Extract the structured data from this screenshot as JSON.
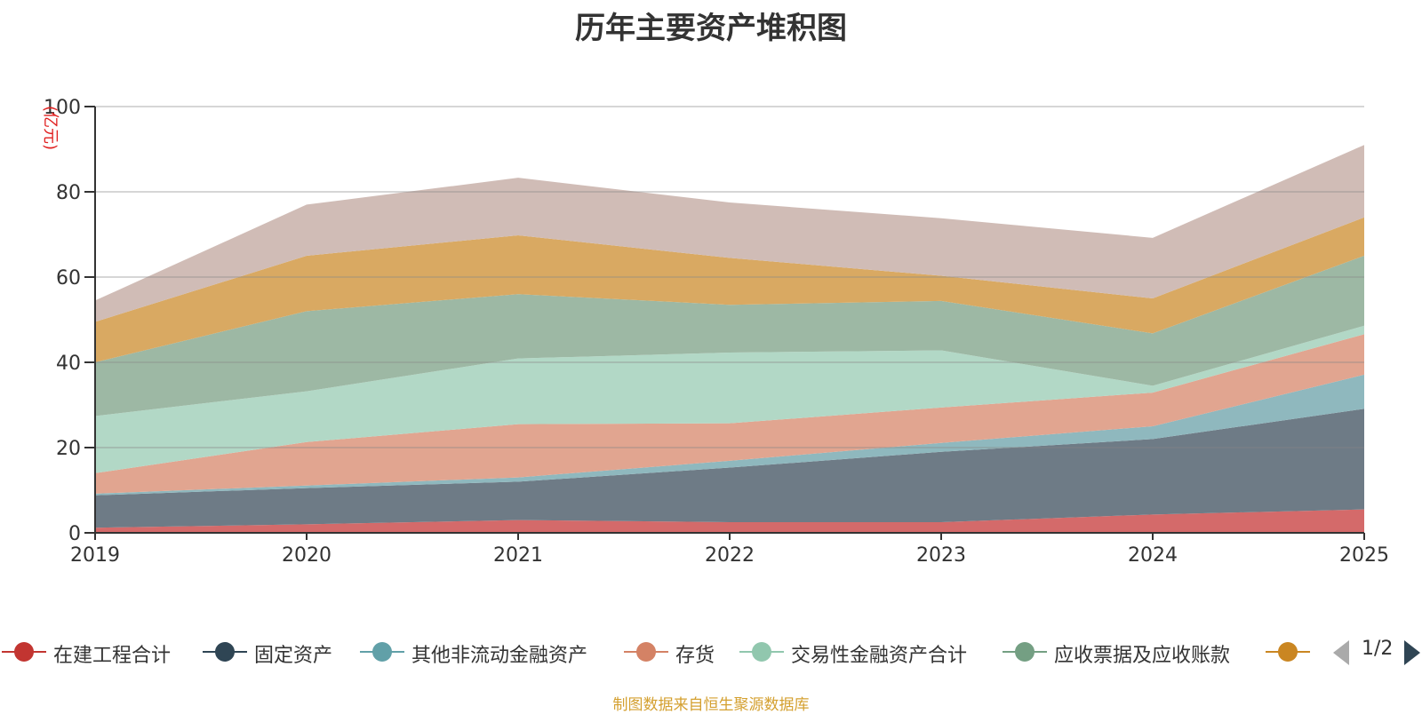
{
  "chart_data": {
    "type": "area",
    "stacked": true,
    "title": "历年主要资产堆积图",
    "ylabel": "(亿元)",
    "xlabel": "",
    "categories": [
      "2019",
      "2020",
      "2021",
      "2022",
      "2023",
      "2024",
      "2025"
    ],
    "ylim": [
      0,
      100
    ],
    "yticks": [
      0,
      20,
      40,
      60,
      80,
      100
    ],
    "series": [
      {
        "name": "在建工程合计",
        "color": "#c23531",
        "fill": "#d46a6a",
        "values": [
          1.2,
          2.0,
          3.0,
          2.5,
          2.5,
          4.3,
          5.5
        ]
      },
      {
        "name": "固定资产",
        "color": "#2f4554",
        "fill": "#6e7b86",
        "values": [
          7.6,
          8.5,
          9.0,
          12.8,
          16.5,
          17.7,
          23.6
        ]
      },
      {
        "name": "其他非流动金融资产",
        "color": "#61a0a8",
        "fill": "#8fb8be",
        "values": [
          0.4,
          0.6,
          1.0,
          1.6,
          2.1,
          3.0,
          8.0
        ]
      },
      {
        "name": "存货",
        "color": "#d48265",
        "fill": "#e1a590",
        "values": [
          4.8,
          10.2,
          12.5,
          8.8,
          8.3,
          7.9,
          9.5
        ]
      },
      {
        "name": "交易性金融资产合计",
        "color": "#91c7ae",
        "fill": "#b2d8c6",
        "values": [
          13.4,
          11.9,
          15.4,
          16.6,
          13.4,
          1.6,
          2.0
        ]
      },
      {
        "name": "应收票据及应收账款",
        "color": "#749f83",
        "fill": "#9db8a4",
        "values": [
          12.6,
          18.8,
          15.1,
          11.2,
          11.6,
          12.3,
          16.4
        ]
      },
      {
        "name": "",
        "color": "#ca8622",
        "fill": "#d9a962",
        "values": [
          9.5,
          13.0,
          13.8,
          11.0,
          5.9,
          8.2,
          9.0
        ]
      },
      {
        "name": "",
        "color": "#bda29a",
        "fill": "#d0bcb6",
        "values": [
          5.0,
          12.0,
          13.5,
          13.0,
          13.5,
          14.2,
          17.0
        ]
      }
    ],
    "legend_placement": "bottom",
    "legend_page": "1/2"
  },
  "source_note": "制图数据来自恒生聚源数据库"
}
